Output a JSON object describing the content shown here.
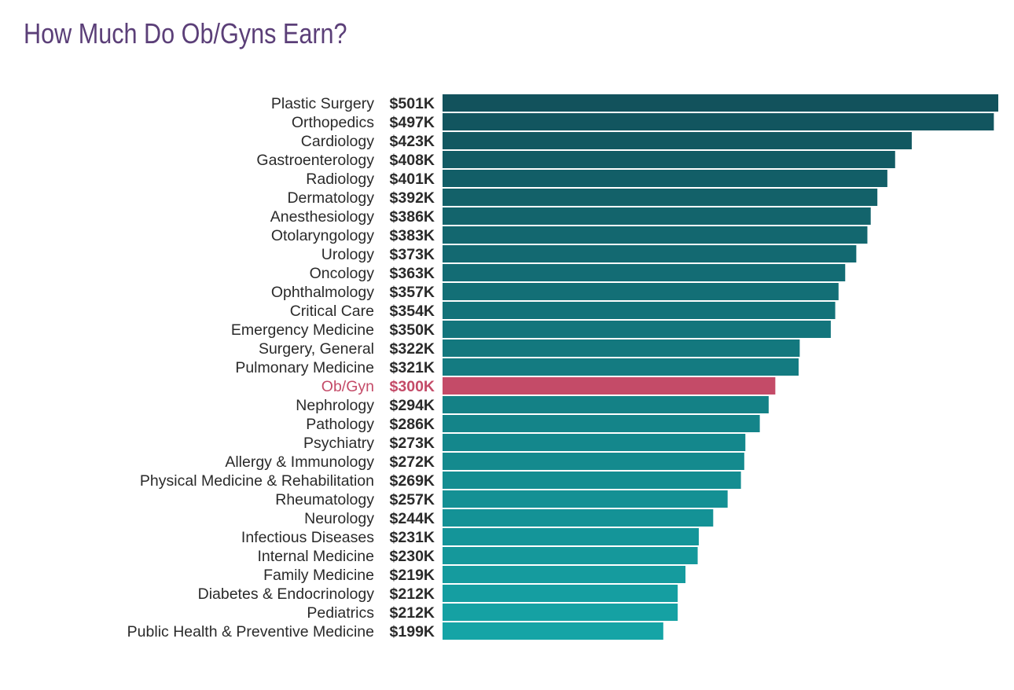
{
  "chart_data": {
    "type": "bar",
    "orientation": "horizontal",
    "title": "How Much Do Ob/Gyns Earn?",
    "xlabel": "",
    "ylabel": "",
    "xlim": [
      0,
      501
    ],
    "grid": false,
    "highlight": "Ob/Gyn",
    "colors": {
      "top": "#12525c",
      "bottom": "#15a4a6",
      "highlight": "#c44b68",
      "title": "#5b3f78"
    },
    "categories": [
      "Plastic Surgery",
      "Orthopedics",
      "Cardiology",
      "Gastroenterology",
      "Radiology",
      "Dermatology",
      "Anesthesiology",
      "Otolaryngology",
      "Urology",
      "Oncology",
      "Ophthalmology",
      "Critical Care",
      "Emergency Medicine",
      "Surgery, General",
      "Pulmonary Medicine",
      "Ob/Gyn",
      "Nephrology",
      "Pathology",
      "Psychiatry",
      "Allergy & Immunology",
      "Physical Medicine & Rehabilitation",
      "Rheumatology",
      "Neurology",
      "Infectious Diseases",
      "Internal Medicine",
      "Family Medicine",
      "Diabetes & Endocrinology",
      "Pediatrics",
      "Public Health & Preventive Medicine"
    ],
    "values": [
      501,
      497,
      423,
      408,
      401,
      392,
      386,
      383,
      373,
      363,
      357,
      354,
      350,
      322,
      321,
      300,
      294,
      286,
      273,
      272,
      269,
      257,
      244,
      231,
      230,
      219,
      212,
      212,
      199
    ],
    "value_labels": [
      "$501K",
      "$497K",
      "$423K",
      "$408K",
      "$401K",
      "$392K",
      "$386K",
      "$383K",
      "$373K",
      "$363K",
      "$357K",
      "$354K",
      "$350K",
      "$322K",
      "$321K",
      "$300K",
      "$294K",
      "$286K",
      "$273K",
      "$272K",
      "$269K",
      "$257K",
      "$244K",
      "$231K",
      "$230K",
      "$219K",
      "$212K",
      "$212K",
      "$199K"
    ]
  }
}
